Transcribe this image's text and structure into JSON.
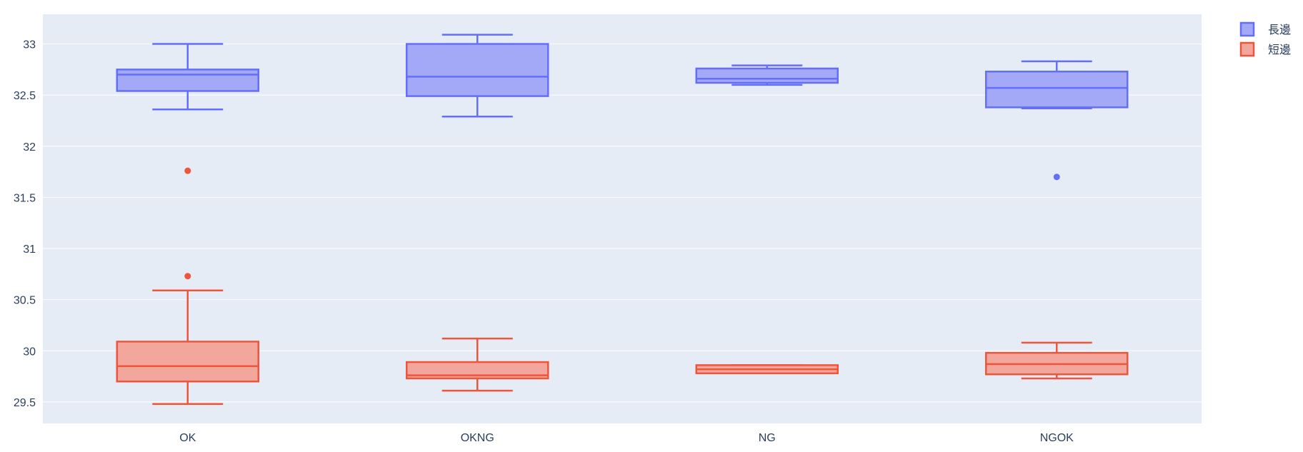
{
  "chart_data": {
    "type": "box",
    "categories": [
      "OK",
      "OKNG",
      "NG",
      "NGOK"
    ],
    "ylim": [
      29.29,
      33.29
    ],
    "yticks": [
      "29.5",
      "30",
      "30.5",
      "31",
      "31.5",
      "32",
      "32.5",
      "33"
    ],
    "grid": true,
    "legend_position": "top-right",
    "colors": {
      "plot_bg": "#e5ecf6",
      "grid": "#ffffff",
      "text": "#2a3f5f"
    },
    "series": [
      {
        "name": "長邊",
        "line_color": "#636efa",
        "fill_color": "#a3a9f7",
        "boxes": [
          {
            "category": "OK",
            "lower_whisker": 32.36,
            "q1": 32.54,
            "median": 32.7,
            "q3": 32.75,
            "upper_whisker": 33.0,
            "outliers": [],
            "mean_line": false
          },
          {
            "category": "OKNG",
            "lower_whisker": 32.29,
            "q1": 32.49,
            "median": 32.68,
            "q3": 33.0,
            "upper_whisker": 33.09,
            "outliers": [],
            "mean_line": false
          },
          {
            "category": "NG",
            "lower_whisker": 32.6,
            "q1": 32.62,
            "median": 32.66,
            "q3": 32.76,
            "upper_whisker": 32.79,
            "outliers": [],
            "mean_line": false
          },
          {
            "category": "NGOK",
            "lower_whisker": 32.37,
            "q1": 32.38,
            "median": 32.57,
            "q3": 32.73,
            "upper_whisker": 32.83,
            "outliers": [
              31.7
            ],
            "mean_line": false
          }
        ]
      },
      {
        "name": "短邊",
        "line_color": "#ef553b",
        "fill_color": "#f2a69c",
        "boxes": [
          {
            "category": "OK",
            "lower_whisker": 29.48,
            "q1": 29.7,
            "median": 29.85,
            "q3": 30.09,
            "upper_whisker": 30.59,
            "outliers": [
              30.73,
              31.76
            ],
            "mean_line": false
          },
          {
            "category": "OKNG",
            "lower_whisker": 29.61,
            "q1": 29.73,
            "median": 29.76,
            "q3": 29.89,
            "upper_whisker": 30.12,
            "outliers": [],
            "mean_line": false
          },
          {
            "category": "NG",
            "lower_whisker": 29.78,
            "q1": 29.78,
            "median": 29.82,
            "q3": 29.86,
            "upper_whisker": 29.86,
            "outliers": [],
            "mean_line": false
          },
          {
            "category": "NGOK",
            "lower_whisker": 29.73,
            "q1": 29.77,
            "median": 29.87,
            "q3": 29.98,
            "upper_whisker": 30.08,
            "outliers": [],
            "mean_line": false
          }
        ]
      }
    ]
  }
}
